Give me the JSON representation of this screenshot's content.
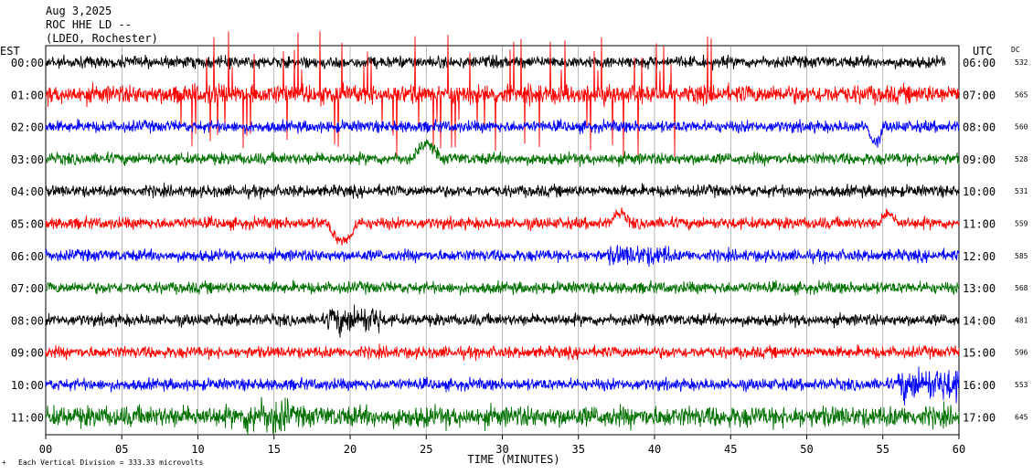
{
  "header": {
    "date": "Aug 3,2025",
    "station": "ROC HHE LD --",
    "network": "(LDEO, Rochester)"
  },
  "labels": {
    "left_tz": "EST",
    "right_tz": "UTC",
    "dc_header": "DC"
  },
  "footer": {
    "scale_note": "Each Vertical Division =  333.33 microvolts"
  },
  "colors": [
    "#000000",
    "#ff0000",
    "#0000ff",
    "#007000"
  ],
  "chart_data": {
    "type": "line",
    "title": "",
    "xlabel": "TIME (MINUTES)",
    "ylabel": "",
    "xlim": [
      0,
      60
    ],
    "x_ticks": [
      "00",
      "05",
      "10",
      "15",
      "20",
      "25",
      "30",
      "35",
      "40",
      "45",
      "50",
      "55",
      "60"
    ],
    "grid": true,
    "series": [
      {
        "est": "00:00",
        "utc": "06:00",
        "dc": "532",
        "color": "#000000"
      },
      {
        "est": "01:00",
        "utc": "07:00",
        "dc": "565",
        "color": "#ff0000"
      },
      {
        "est": "02:00",
        "utc": "08:00",
        "dc": "560",
        "color": "#0000ff"
      },
      {
        "est": "03:00",
        "utc": "09:00",
        "dc": "528",
        "color": "#007000"
      },
      {
        "est": "04:00",
        "utc": "10:00",
        "dc": "531",
        "color": "#000000"
      },
      {
        "est": "05:00",
        "utc": "11:00",
        "dc": "559",
        "color": "#ff0000"
      },
      {
        "est": "06:00",
        "utc": "12:00",
        "dc": "585",
        "color": "#0000ff"
      },
      {
        "est": "07:00",
        "utc": "13:00",
        "dc": "568",
        "color": "#007000"
      },
      {
        "est": "08:00",
        "utc": "14:00",
        "dc": "481",
        "color": "#000000"
      },
      {
        "est": "09:00",
        "utc": "15:00",
        "dc": "596",
        "color": "#ff0000"
      },
      {
        "est": "10:00",
        "utc": "16:00",
        "dc": "553",
        "color": "#0000ff"
      },
      {
        "est": "11:00",
        "utc": "17:00",
        "dc": "645",
        "color": "#007000"
      }
    ]
  }
}
